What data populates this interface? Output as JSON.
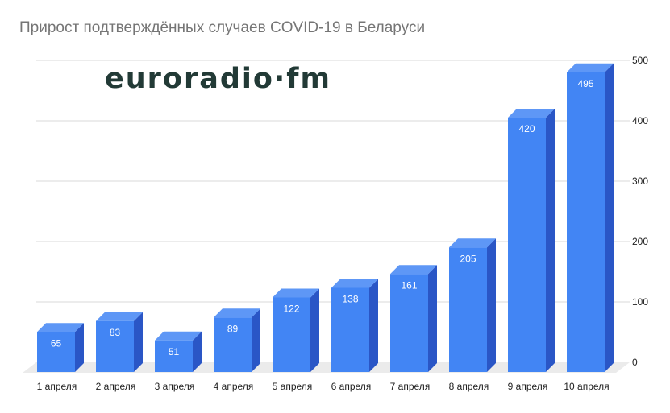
{
  "chart_data": {
    "type": "bar",
    "title": "Прирост подтверждённых случаев COVID-19 в Беларуси",
    "categories": [
      "1 апреля",
      "2 апреля",
      "3 апреля",
      "4 апреля",
      "5 апреля",
      "6 апреля",
      "7 апреля",
      "8 апреля",
      "9 апреля",
      "10 апреля"
    ],
    "values": [
      65,
      83,
      51,
      89,
      122,
      138,
      161,
      205,
      420,
      495
    ],
    "xlabel": "",
    "ylabel": "",
    "ylim": [
      0,
      500
    ],
    "yticks": [
      0,
      100,
      200,
      300,
      400,
      500
    ],
    "y_axis_side": "right",
    "grid": true,
    "legend": "none",
    "data_labels": true,
    "style": "3d"
  },
  "colors": {
    "bar_front": "#4285f4",
    "bar_top": "#5e97f6",
    "bar_side": "#2a56c6",
    "grid": "#d9d9d9",
    "floor": "#ebebeb"
  },
  "watermark": {
    "text": "euroradio·fm"
  }
}
